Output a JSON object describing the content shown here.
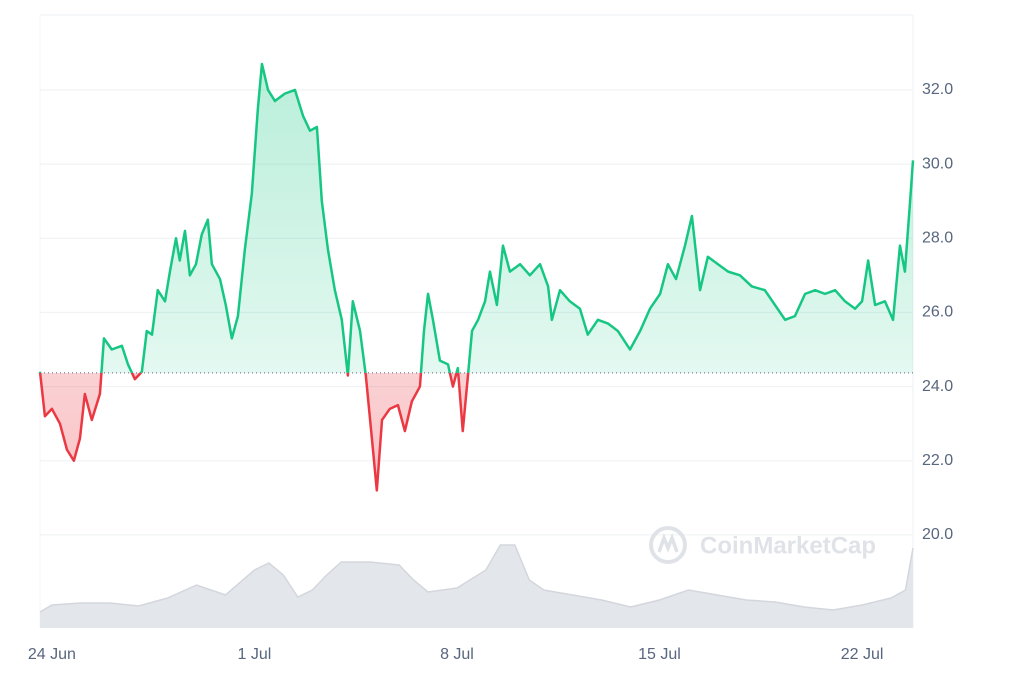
{
  "chart_data": {
    "type": "line",
    "baseline": 24.37,
    "series": [
      {
        "color": "#16c784",
        "color_below": "#ea3943",
        "x": [
          -0.41,
          -0.24,
          0,
          0.28,
          0.52,
          0.76,
          0.97,
          1.14,
          1.38,
          1.66,
          1.8,
          2.07,
          2.42,
          2.63,
          2.87,
          3.11,
          3.28,
          3.46,
          3.66,
          3.91,
          4.08,
          4.29,
          4.42,
          4.6,
          4.77,
          4.98,
          5.18,
          5.39,
          5.53,
          5.81,
          6.01,
          6.22,
          6.43,
          6.67,
          6.91,
          7.12,
          7.26,
          7.47,
          7.71,
          8.05,
          8.4,
          8.68,
          8.92,
          9.16,
          9.33,
          9.54,
          9.78,
          10.02,
          10.23,
          10.4,
          10.65,
          10.85,
          11.06,
          11.23,
          11.41,
          11.68,
          11.96,
          12.2,
          12.44,
          12.72,
          12.86,
          13.0,
          13.17,
          13.41,
          13.69,
          13.86,
          14.03,
          14.2,
          14.38,
          14.52,
          14.73,
          14.97,
          15.14,
          15.38,
          15.59,
          15.83,
          16.18,
          16.52,
          16.87,
          17.15,
          17.28,
          17.56,
          17.9,
          18.25,
          18.52,
          18.87,
          19.22,
          19.56,
          19.98,
          20.33,
          20.67,
          21.02,
          21.29,
          21.57,
          21.88,
          22.12,
          22.4,
          22.67,
          23.02,
          23.37,
          23.78,
          24.19,
          24.64,
          24.99,
          25.34,
          25.68,
          26.03,
          26.38,
          26.72,
          27.07,
          27.41,
          27.76,
          28.0,
          28.21,
          28.45,
          28.79,
          29.07,
          29.31,
          29.48,
          29.66,
          29.76
        ],
        "values": [
          24.4,
          23.2,
          23.4,
          23.0,
          22.3,
          22.0,
          22.6,
          23.8,
          23.1,
          23.8,
          25.3,
          25.0,
          25.1,
          24.6,
          24.2,
          24.4,
          25.5,
          25.4,
          26.6,
          26.3,
          27.1,
          28.0,
          27.4,
          28.2,
          27.0,
          27.3,
          28.1,
          28.5,
          27.3,
          26.9,
          26.2,
          25.3,
          25.9,
          27.7,
          29.2,
          31.5,
          32.7,
          32.0,
          31.7,
          31.9,
          32.0,
          31.3,
          30.9,
          31.0,
          29.0,
          27.7,
          26.6,
          25.8,
          24.3,
          26.3,
          25.5,
          24.3,
          22.6,
          21.2,
          23.1,
          23.4,
          23.5,
          22.8,
          23.6,
          24.0,
          25.5,
          26.5,
          25.8,
          24.7,
          24.6,
          24.0,
          24.5,
          22.8,
          24.3,
          25.5,
          25.8,
          26.3,
          27.1,
          26.2,
          27.8,
          27.1,
          27.3,
          27.0,
          27.3,
          26.7,
          25.8,
          26.6,
          26.3,
          26.1,
          25.4,
          25.8,
          25.7,
          25.5,
          25.0,
          25.5,
          26.1,
          26.5,
          27.3,
          26.9,
          27.8,
          28.6,
          26.6,
          27.5,
          27.3,
          27.1,
          27.0,
          26.7,
          26.6,
          26.2,
          25.8,
          25.9,
          26.5,
          26.6,
          26.5,
          26.6,
          26.3,
          26.1,
          26.3,
          27.4,
          26.2,
          26.3,
          25.8,
          27.8,
          27.1,
          29.0,
          30.1
        ]
      }
    ],
    "volume": {
      "color": "#e3e6ea",
      "ylim": [
        0,
        100
      ],
      "x": [
        -0.41,
        0,
        1,
        2,
        3,
        4,
        5,
        6,
        7,
        7.5,
        8,
        8.5,
        9,
        9.5,
        10,
        11,
        12,
        12.5,
        13,
        14,
        15,
        15.5,
        16,
        16.5,
        17,
        18,
        19,
        20,
        21,
        22,
        23,
        24,
        25,
        26,
        27,
        28,
        29,
        29.5,
        29.76
      ],
      "values": [
        16,
        23,
        25,
        25,
        22,
        30,
        43,
        33,
        58,
        65,
        53,
        31,
        38,
        53,
        66,
        66,
        63,
        48,
        36,
        40,
        58,
        83,
        83,
        48,
        38,
        33,
        28,
        21,
        28,
        38,
        33,
        28,
        26,
        21,
        18,
        23,
        30,
        38,
        80
      ]
    },
    "xlim": [
      -0.41,
      29.76
    ],
    "xticks": [
      {
        "value": 0,
        "label": "24 Jun"
      },
      {
        "value": 7,
        "label": "1 Jul"
      },
      {
        "value": 14,
        "label": "8 Jul"
      },
      {
        "value": 21,
        "label": "15 Jul"
      },
      {
        "value": 28,
        "label": "22 Jul"
      }
    ],
    "ylim": [
      17.49,
      34.02
    ],
    "yticks": [
      {
        "value": 20,
        "label": "20.0"
      },
      {
        "value": 22,
        "label": "22.0"
      },
      {
        "value": 24,
        "label": "24.0"
      },
      {
        "value": 26,
        "label": "26.0"
      },
      {
        "value": 28,
        "label": "28.0"
      },
      {
        "value": 30,
        "label": "30.0"
      },
      {
        "value": 32,
        "label": "32.0"
      }
    ],
    "grid": true,
    "watermark": "CoinMarketCap"
  }
}
